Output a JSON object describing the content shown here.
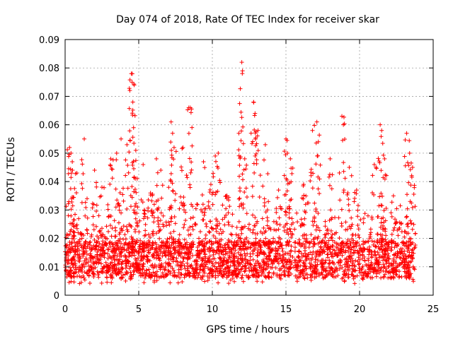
{
  "chart_data": {
    "type": "scatter",
    "title": "Day 074 of 2018, Rate Of TEC Index for receiver skar",
    "xlabel": "GPS time / hours",
    "ylabel": "ROTI / TECUs",
    "xlim": [
      0,
      25
    ],
    "ylim": [
      0,
      0.09
    ],
    "x_ticks": [
      "0",
      "5",
      "10",
      "15",
      "20",
      "25"
    ],
    "y_ticks": [
      "0",
      "0.01",
      "0.02",
      "0.03",
      "0.04",
      "0.05",
      "0.06",
      "0.07",
      "0.08",
      "0.09"
    ],
    "x_tick_values": [
      0,
      5,
      10,
      15,
      20,
      25
    ],
    "y_tick_values": [
      0,
      0.01,
      0.02,
      0.03,
      0.04,
      0.05,
      0.06,
      0.07,
      0.08,
      0.09
    ],
    "grid": true,
    "marker": "+",
    "marker_color": "#ff0000",
    "data_extent_hours": [
      0,
      23.8
    ],
    "points": [
      [
        0.3,
        0.052
      ],
      [
        0.4,
        0.05
      ],
      [
        0.5,
        0.044
      ],
      [
        0.8,
        0.043
      ],
      [
        1.3,
        0.055
      ],
      [
        2.0,
        0.044
      ],
      [
        3.1,
        0.048
      ],
      [
        3.5,
        0.05
      ],
      [
        3.8,
        0.055
      ],
      [
        4.2,
        0.053
      ],
      [
        4.5,
        0.078
      ],
      [
        4.55,
        0.075
      ],
      [
        4.6,
        0.068
      ],
      [
        4.65,
        0.059
      ],
      [
        4.8,
        0.051
      ],
      [
        5.3,
        0.046
      ],
      [
        6.2,
        0.048
      ],
      [
        6.5,
        0.044
      ],
      [
        7.2,
        0.061
      ],
      [
        7.3,
        0.057
      ],
      [
        7.4,
        0.052
      ],
      [
        8.0,
        0.052
      ],
      [
        8.4,
        0.066
      ],
      [
        8.5,
        0.066
      ],
      [
        9.4,
        0.047
      ],
      [
        10.2,
        0.049
      ],
      [
        10.4,
        0.05
      ],
      [
        11.8,
        0.057
      ],
      [
        12.0,
        0.082
      ],
      [
        12.05,
        0.079
      ],
      [
        12.2,
        0.048
      ],
      [
        12.8,
        0.068
      ],
      [
        12.9,
        0.064
      ],
      [
        13.1,
        0.058
      ],
      [
        13.6,
        0.053
      ],
      [
        15.0,
        0.055
      ],
      [
        15.1,
        0.05
      ],
      [
        15.3,
        0.048
      ],
      [
        16.8,
        0.058
      ],
      [
        17.1,
        0.061
      ],
      [
        17.2,
        0.054
      ],
      [
        18.0,
        0.048
      ],
      [
        18.8,
        0.063
      ],
      [
        18.9,
        0.06
      ],
      [
        19.3,
        0.045
      ],
      [
        21.0,
        0.046
      ],
      [
        21.4,
        0.06
      ],
      [
        21.5,
        0.058
      ],
      [
        21.7,
        0.048
      ],
      [
        23.2,
        0.057
      ],
      [
        23.4,
        0.05
      ],
      [
        23.6,
        0.045
      ],
      [
        2.5,
        0.038
      ],
      [
        5.8,
        0.036
      ],
      [
        9.9,
        0.039
      ],
      [
        11.0,
        0.035
      ],
      [
        14.5,
        0.037
      ],
      [
        16.2,
        0.039
      ],
      [
        19.8,
        0.037
      ],
      [
        22.3,
        0.035
      ]
    ],
    "dense_band": [
      {
        "x_range": [
          0,
          23.8
        ],
        "y_range": [
          0.003,
          0.03
        ]
      }
    ]
  }
}
